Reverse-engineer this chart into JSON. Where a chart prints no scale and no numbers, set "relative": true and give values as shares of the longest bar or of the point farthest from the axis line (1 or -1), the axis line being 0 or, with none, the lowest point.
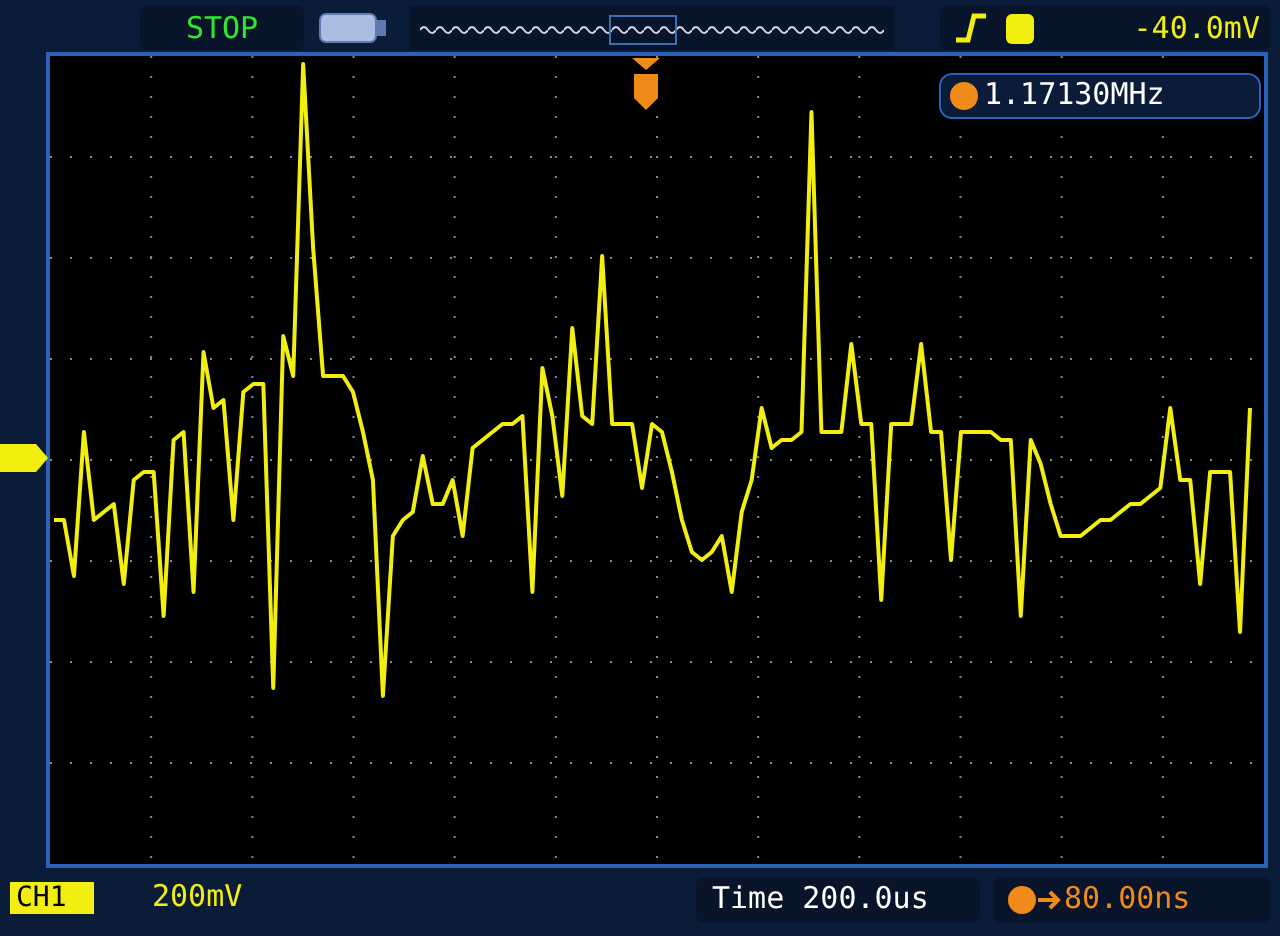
{
  "chart_data": {
    "type": "line",
    "relative": true,
    "grid": true,
    "categories": [
      null,
      null,
      null,
      null,
      null,
      null,
      null,
      null,
      null,
      null,
      null,
      null,
      null,
      null,
      null,
      null,
      null,
      null,
      null,
      null,
      null,
      null,
      null,
      null,
      null,
      null,
      null,
      null,
      null,
      null,
      null,
      null,
      null,
      null,
      null,
      null,
      null,
      null,
      null,
      null,
      null,
      null,
      null,
      null,
      null,
      null,
      null,
      null,
      null,
      null,
      null,
      null,
      null,
      null,
      null,
      null,
      null,
      null,
      null,
      null,
      null,
      null,
      null,
      null,
      null,
      null,
      null,
      null,
      null,
      null,
      null,
      null,
      null,
      null,
      null,
      null,
      null,
      null,
      null,
      null,
      null,
      null,
      null,
      null,
      null,
      null,
      null,
      null,
      null,
      null,
      null,
      null,
      null,
      null,
      null,
      null,
      null,
      null,
      null,
      null,
      null,
      null,
      null,
      null,
      null,
      null,
      null,
      null,
      null,
      null,
      null,
      null,
      null,
      null,
      null,
      null,
      null,
      null,
      null,
      null,
      null
    ],
    "series": [
      {
        "color": "#f2ee10",
        "values": [
          0.43,
          0.43,
          0.36,
          0.54,
          0.43,
          0.44,
          0.45,
          0.35,
          0.48,
          0.49,
          0.49,
          0.31,
          0.53,
          0.54,
          0.34,
          0.64,
          0.57,
          0.58,
          0.43,
          0.59,
          0.6,
          0.6,
          0.22,
          0.66,
          0.61,
          1,
          0.77,
          0.61,
          0.61,
          0.61,
          0.59,
          0.54,
          0.48,
          0.21,
          0.41,
          0.43,
          0.44,
          0.51,
          0.45,
          0.45,
          0.48,
          0.41,
          0.52,
          0.53,
          0.54,
          0.55,
          0.55,
          0.56,
          0.34,
          0.62,
          0.56,
          0.46,
          0.67,
          0.56,
          0.55,
          0.76,
          0.55,
          0.55,
          0.55,
          0.47,
          0.55,
          0.54,
          0.49,
          0.43,
          0.39,
          0.38,
          0.39,
          0.41,
          0.34,
          0.44,
          0.48,
          0.57,
          0.52,
          0.53,
          0.53,
          0.54,
          0.94,
          0.54,
          0.54,
          0.54,
          0.65,
          0.55,
          0.55,
          0.33,
          0.55,
          0.55,
          0.55,
          0.65,
          0.54,
          0.54,
          0.38,
          0.54,
          0.54,
          0.54,
          0.54,
          0.53,
          0.53,
          0.31,
          0.53,
          0.5,
          0.45,
          0.41,
          0.41,
          0.41,
          0.42,
          0.43,
          0.43,
          0.44,
          0.45,
          0.45,
          0.46,
          0.47,
          0.57,
          0.48,
          0.48,
          0.35,
          0.49,
          0.49,
          0.49,
          0.29,
          0.57
        ]
      }
    ],
    "annotations": [
      "STOP",
      "-40.0mV",
      "1.17130MHz",
      "CH1",
      "200mV",
      "Time 200.0us",
      "80.00ns"
    ]
  }
}
